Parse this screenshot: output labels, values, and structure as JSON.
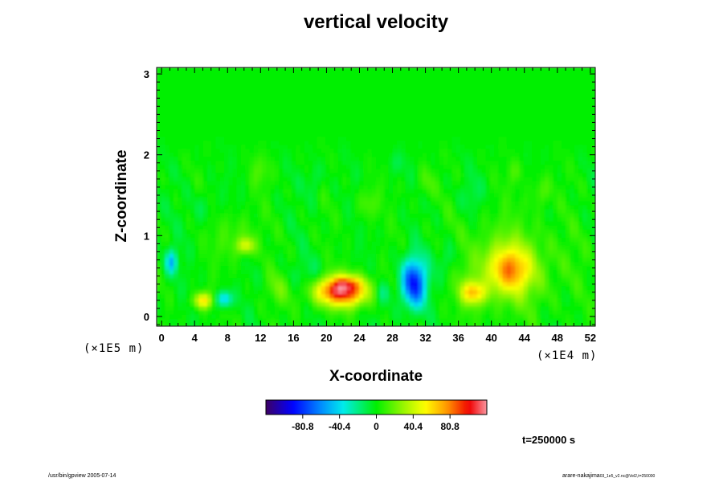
{
  "chart_data": {
    "type": "heatmap",
    "title": "vertical velocity",
    "xlabel": "X-coordinate",
    "ylabel": "Z-coordinate",
    "x_unit": "(×1E4 m)",
    "z_unit": "(×1E5 m)",
    "xlim": [
      -0.6,
      52.6
    ],
    "ylim": [
      -0.12,
      3.08
    ],
    "x_ticks": [
      "0",
      "4",
      "8",
      "12",
      "16",
      "20",
      "24",
      "28",
      "32",
      "36",
      "40",
      "44",
      "48",
      "52"
    ],
    "y_ticks": [
      "0",
      "1",
      "2",
      "3"
    ],
    "colorbar": {
      "min": -121.2,
      "max": 121.2,
      "tick_labels": [
        "-80.8",
        "-40.4",
        "0",
        "40.4",
        "80.8"
      ],
      "tick_values": [
        -80.8,
        -40.4,
        0,
        40.4,
        80.8
      ]
    },
    "features": [
      {
        "x": 21.8,
        "z": 0.32,
        "rx": 3.2,
        "rz": 0.18,
        "value": 110
      },
      {
        "x": 22.6,
        "z": 0.42,
        "rx": 1.6,
        "rz": 0.08,
        "value": 25
      },
      {
        "x": 30.6,
        "z": 0.42,
        "rx": 1.5,
        "rz": 0.3,
        "value": -90
      },
      {
        "x": 42.2,
        "z": 0.58,
        "rx": 2.6,
        "rz": 0.28,
        "value": 60
      },
      {
        "x": 42.0,
        "z": 0.62,
        "rx": 6.5,
        "rz": 0.55,
        "value": 22
      },
      {
        "x": 37.8,
        "z": 0.3,
        "rx": 1.5,
        "rz": 0.14,
        "value": 58
      },
      {
        "x": 5.0,
        "z": 0.2,
        "rx": 1.1,
        "rz": 0.1,
        "value": 60
      },
      {
        "x": 7.6,
        "z": 0.22,
        "rx": 0.9,
        "rz": 0.1,
        "value": -50
      },
      {
        "x": 1.2,
        "z": 0.68,
        "rx": 0.7,
        "rz": 0.15,
        "value": -48
      },
      {
        "x": 10.2,
        "z": 0.88,
        "rx": 1.0,
        "rz": 0.1,
        "value": 42
      },
      {
        "x": 26.8,
        "z": 0.3,
        "rx": 1.0,
        "rz": 0.14,
        "value": -22
      },
      {
        "x": 18.0,
        "z": 0.5,
        "rx": 2.0,
        "rz": 0.2,
        "value": -12
      },
      {
        "x": 34.8,
        "z": 0.72,
        "rx": 1.4,
        "rz": 0.22,
        "value": -18
      },
      {
        "x": 14.0,
        "z": 0.35,
        "rx": 1.5,
        "rz": 0.2,
        "value": 15
      },
      {
        "x": 9.0,
        "z": 1.0,
        "rx": 2.5,
        "rz": 0.3,
        "value": 14
      },
      {
        "x": 25.0,
        "z": 1.4,
        "rx": 1.2,
        "rz": 0.2,
        "value": 16
      },
      {
        "x": 32.0,
        "z": 1.65,
        "rx": 1.0,
        "rz": 0.2,
        "value": 14
      },
      {
        "x": 46.0,
        "z": 1.55,
        "rx": 1.2,
        "rz": 0.2,
        "value": 16
      },
      {
        "x": 18.5,
        "z": 1.7,
        "rx": 0.9,
        "rz": 0.2,
        "value": -14
      },
      {
        "x": 37.5,
        "z": 1.5,
        "rx": 1.2,
        "rz": 0.2,
        "value": -12
      },
      {
        "x": 5.0,
        "z": 1.35,
        "rx": 1.4,
        "rz": 0.2,
        "value": -10
      },
      {
        "x": 12.0,
        "z": 1.8,
        "rx": 1.3,
        "rz": 0.2,
        "value": 12
      },
      {
        "x": 43.0,
        "z": 1.8,
        "rx": 1.0,
        "rz": 0.15,
        "value": 12
      },
      {
        "x": 28.5,
        "z": 1.9,
        "rx": 1.0,
        "rz": 0.15,
        "value": -10
      }
    ]
  },
  "time_label": "t=250000 s",
  "footer_left": "/usr/bin/gpview 2005-07-14",
  "footer_right": "arare-nakajima",
  "footer_right_small": "03_1e5_v2.nc@Vel2,t=250000",
  "colors": {
    "background": "#ffffff",
    "neutral": "#00f000"
  }
}
